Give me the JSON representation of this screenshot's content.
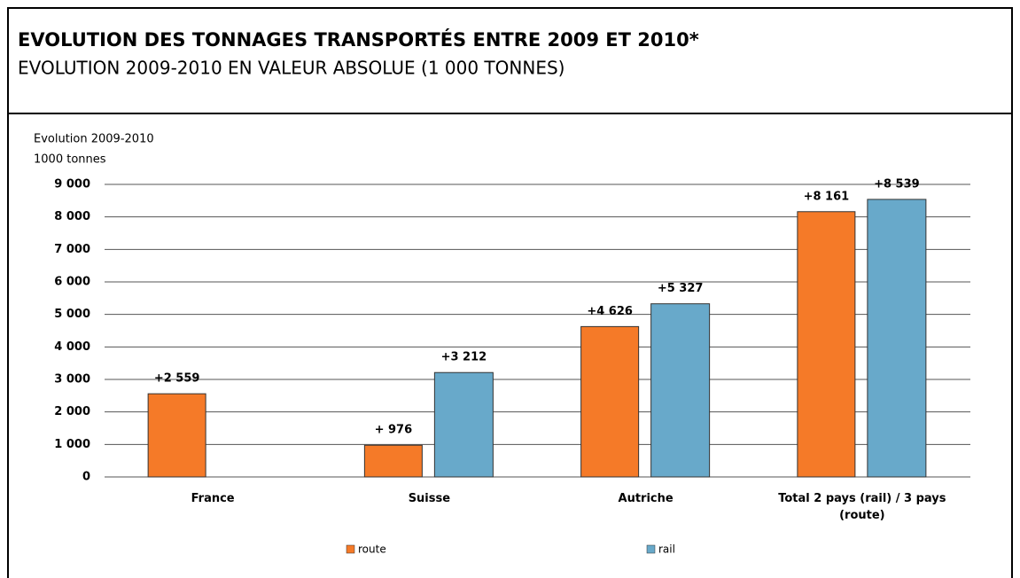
{
  "header": {
    "title": "EVOLUTION DES TONNAGES TRANSPORTÉS ENTRE 2009 ET 2010*",
    "subtitle": "EVOLUTION 2009-2010 EN VALEUR ABSOLUE (1 000 TONNES)"
  },
  "chart_data": {
    "type": "bar",
    "y_label_lines": [
      "Evolution 2009-2010",
      "1000 tonnes"
    ],
    "categories": [
      "France",
      "Suisse",
      "Autriche",
      "Total 2 pays (rail) / 3 pays (route)"
    ],
    "series": [
      {
        "name": "route",
        "color": "#f57a28",
        "values": [
          2559,
          976,
          4626,
          8161
        ],
        "value_labels": [
          "+2 559",
          "+ 976",
          "+4 626",
          "+8 161"
        ]
      },
      {
        "name": "rail",
        "color": "#68a9ca",
        "values": [
          null,
          3212,
          5327,
          8539
        ],
        "value_labels": [
          null,
          "+3 212",
          "+5 327",
          "+8 539"
        ]
      }
    ],
    "ylim": [
      0,
      9000
    ],
    "yticks": [
      0,
      {
        "value": 1000,
        "label": "1 000"
      },
      {
        "value": 2000,
        "label": "2 000"
      },
      {
        "value": 3000,
        "label": "3 000"
      },
      {
        "value": 4000,
        "label": "4 000"
      },
      {
        "value": 5000,
        "label": "5 000"
      },
      {
        "value": 6000,
        "label": "6 000"
      },
      {
        "value": 7000,
        "label": "7 000"
      },
      {
        "value": 8000,
        "label": "8 000"
      },
      {
        "value": 9000,
        "label": "9 000"
      }
    ],
    "grid": true
  }
}
